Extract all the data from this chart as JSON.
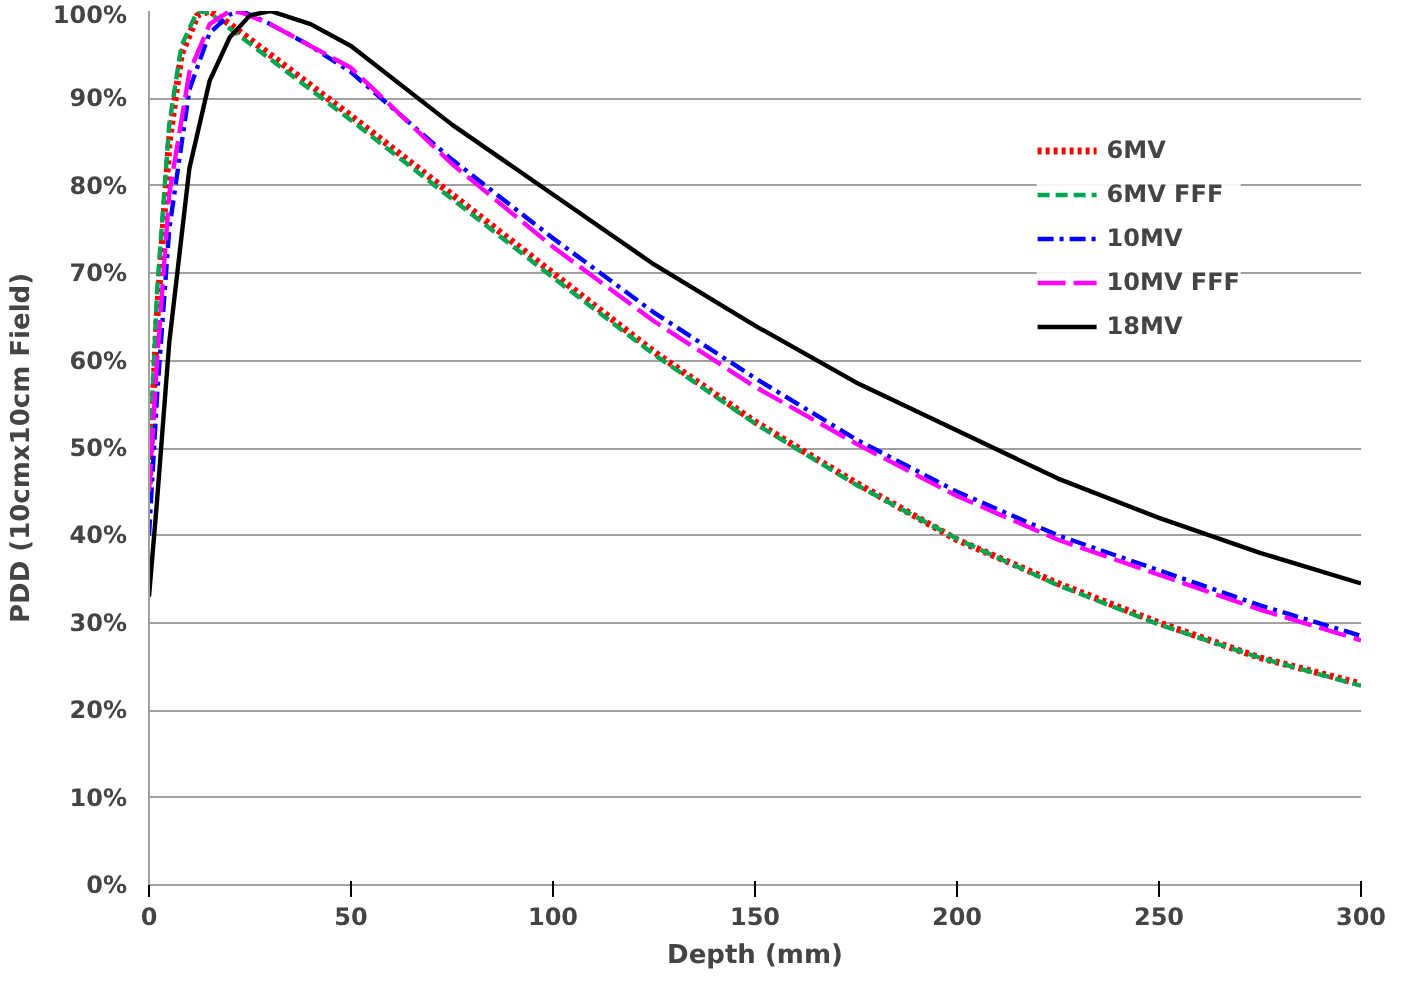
{
  "chart_data": {
    "type": "line",
    "xlabel": "Depth (mm)",
    "ylabel": "PDD (10cmx10cm Field)",
    "xlim": [
      0,
      300
    ],
    "xticks": [
      0,
      50,
      100,
      150,
      200,
      250,
      300
    ],
    "ylim": [
      0,
      100
    ],
    "yticks": [
      {
        "value": 0,
        "label": "0%"
      },
      {
        "value": 10,
        "label": "10%"
      },
      {
        "value": 20,
        "label": "20%"
      },
      {
        "value": 30,
        "label": "30%"
      },
      {
        "value": 40,
        "label": "40%"
      },
      {
        "value": 50,
        "label": "50%"
      },
      {
        "value": 60,
        "label": "60%"
      },
      {
        "value": 70,
        "label": "70%"
      },
      {
        "value": 80,
        "label": "80%"
      },
      {
        "value": 90,
        "label": "90%"
      },
      {
        "value": 100,
        "label": "100%"
      }
    ],
    "grid": "y",
    "legend": "top right",
    "marker": "none",
    "series": [
      {
        "name": "6MV",
        "color": "#ff0000",
        "line_style": "dotted",
        "x": [
          0,
          2,
          5,
          8,
          12,
          15,
          20,
          30,
          40,
          50,
          75,
          100,
          125,
          150,
          175,
          200,
          225,
          250,
          275,
          300
        ],
        "values": [
          45,
          65,
          85,
          95,
          99.5,
          100,
          98.5,
          95,
          91.5,
          88,
          79,
          70,
          61,
          53,
          46,
          39.5,
          34.5,
          30,
          26,
          23
        ]
      },
      {
        "name": "6MV FFF",
        "color": "#00a550",
        "line_style": "dashed",
        "x": [
          0,
          2,
          5,
          8,
          12,
          15,
          20,
          30,
          40,
          50,
          75,
          100,
          125,
          150,
          175,
          200,
          225,
          250,
          275,
          300
        ],
        "values": [
          47,
          68,
          87,
          96,
          100,
          99.8,
          98,
          94.5,
          91,
          87.5,
          78.5,
          69.5,
          60.7,
          52.8,
          45.8,
          39.6,
          34.3,
          29.8,
          26,
          22.8
        ]
      },
      {
        "name": "10MV",
        "color": "#0000ff",
        "line_style": "dashdot",
        "x": [
          0,
          2,
          5,
          10,
          15,
          20,
          23,
          30,
          40,
          50,
          75,
          100,
          125,
          150,
          175,
          200,
          225,
          250,
          275,
          300
        ],
        "values": [
          40,
          56,
          75,
          91,
          97.5,
          99.6,
          100,
          98.5,
          96,
          93,
          83,
          74,
          65.5,
          58,
          51,
          45,
          40,
          36,
          32,
          28.5
        ]
      },
      {
        "name": "10MV FFF",
        "color": "#ff00ff",
        "line_style": "longdash",
        "x": [
          0,
          2,
          5,
          10,
          15,
          20,
          23,
          30,
          40,
          50,
          75,
          100,
          125,
          150,
          175,
          200,
          225,
          250,
          275,
          300
        ],
        "values": [
          45,
          60,
          79,
          93,
          98.5,
          100,
          99.8,
          98.5,
          96,
          93.5,
          82.5,
          73,
          64.5,
          57,
          50.5,
          44.5,
          39.5,
          35.5,
          31.5,
          28
        ]
      },
      {
        "name": "18MV",
        "color": "#000000",
        "line_style": "solid",
        "x": [
          0,
          2,
          5,
          10,
          15,
          20,
          25,
          30,
          40,
          50,
          75,
          100,
          125,
          150,
          175,
          200,
          225,
          250,
          275,
          300
        ],
        "values": [
          33,
          44,
          62,
          82,
          92,
          97,
          99.5,
          100,
          98.5,
          96,
          87,
          79,
          71,
          64,
          57.5,
          52,
          46.5,
          42,
          38,
          34.5
        ]
      }
    ]
  }
}
